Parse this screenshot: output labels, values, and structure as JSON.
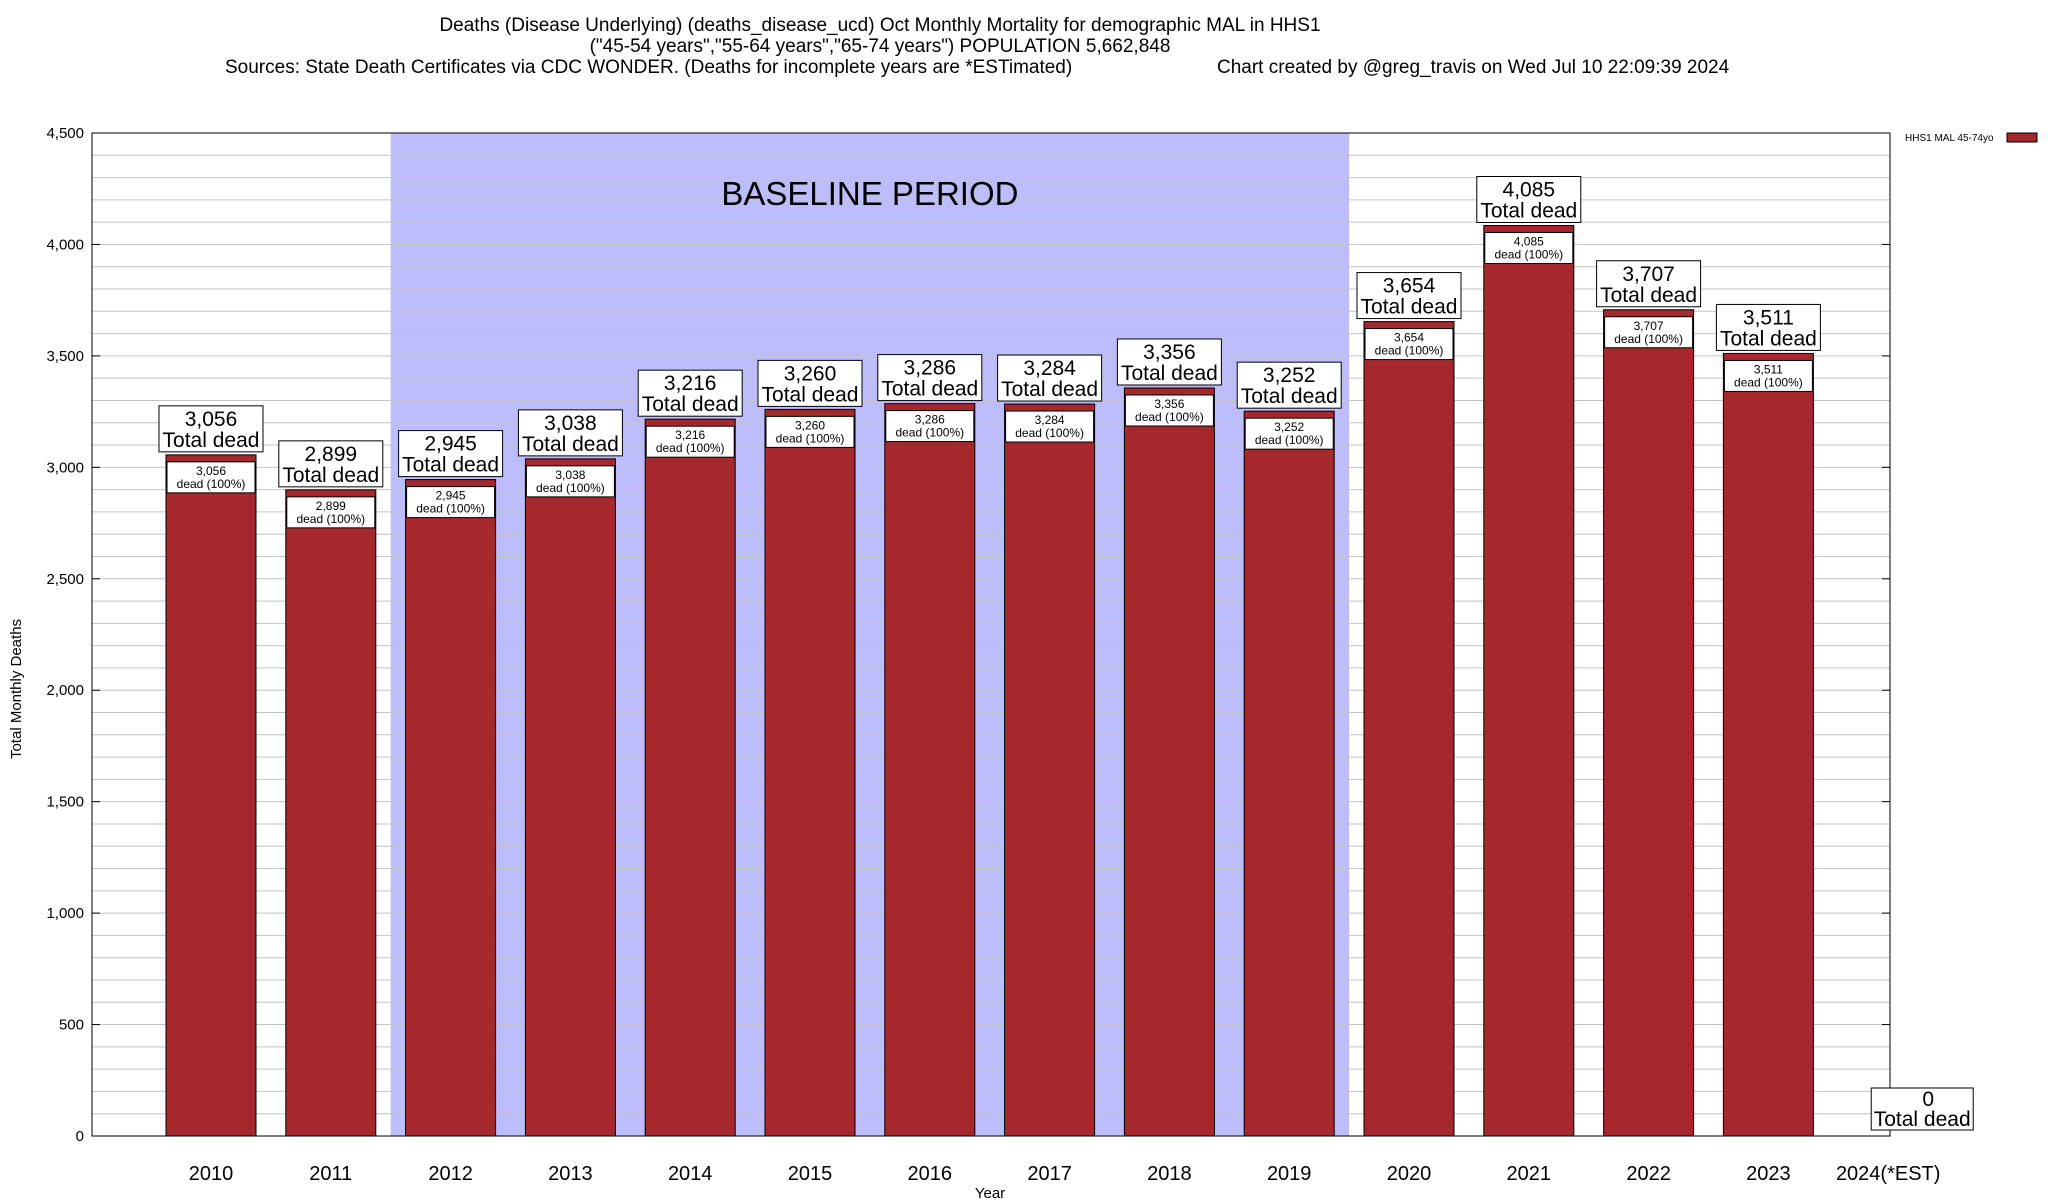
{
  "chart_data": {
    "type": "bar",
    "title": [
      "Deaths (Disease Underlying) (deaths_disease_ucd) Oct Monthly Mortality for demographic MAL in HHS1",
      "(\"45-54 years\",\"55-64 years\",\"65-74 years\") POPULATION 5,662,848",
      "Sources: State Death Certificates via CDC WONDER. (Deaths for incomplete years are *ESTimated)",
      "Chart created by @greg_travis on Wed Jul 10 22:09:39 2024"
    ],
    "xlabel": "Year",
    "ylabel": "Total Monthly Deaths",
    "ylim": [
      0,
      4500
    ],
    "yticks": [
      0,
      500,
      1000,
      1500,
      2000,
      2500,
      3000,
      3500,
      4000,
      4500
    ],
    "ytick_labels": [
      "0",
      "500",
      "1,000",
      "1,500",
      "2,000",
      "2,500",
      "3,000",
      "3,500",
      "4,000",
      "4,500"
    ],
    "minor_gridline_step": 100,
    "categories": [
      "2010",
      "2011",
      "2012",
      "2013",
      "2014",
      "2015",
      "2016",
      "2017",
      "2018",
      "2019",
      "2020",
      "2021",
      "2022",
      "2023",
      "2024(*EST)"
    ],
    "series": [
      {
        "name": "HHS1 MAL 45-74yo",
        "color": "#a4282c",
        "values": [
          3056,
          2899,
          2945,
          3038,
          3216,
          3260,
          3286,
          3284,
          3356,
          3252,
          3654,
          4085,
          3707,
          3511,
          0
        ],
        "value_labels": [
          "3,056",
          "2,899",
          "2,945",
          "3,038",
          "3,216",
          "3,260",
          "3,286",
          "3,284",
          "3,356",
          "3,252",
          "3,654",
          "4,085",
          "3,707",
          "3,511",
          "0"
        ]
      }
    ],
    "top_label_suffix": "Total dead",
    "inner_label_suffix": "dead (100%)",
    "baseline_period": {
      "label": "BASELINE PERIOD",
      "start_category": "2012",
      "end_category": "2019",
      "color": "#bdbdfb"
    },
    "legend": {
      "entries": [
        "HHS1 MAL 45-74yo"
      ],
      "placement": "top-right"
    },
    "grid": true
  }
}
